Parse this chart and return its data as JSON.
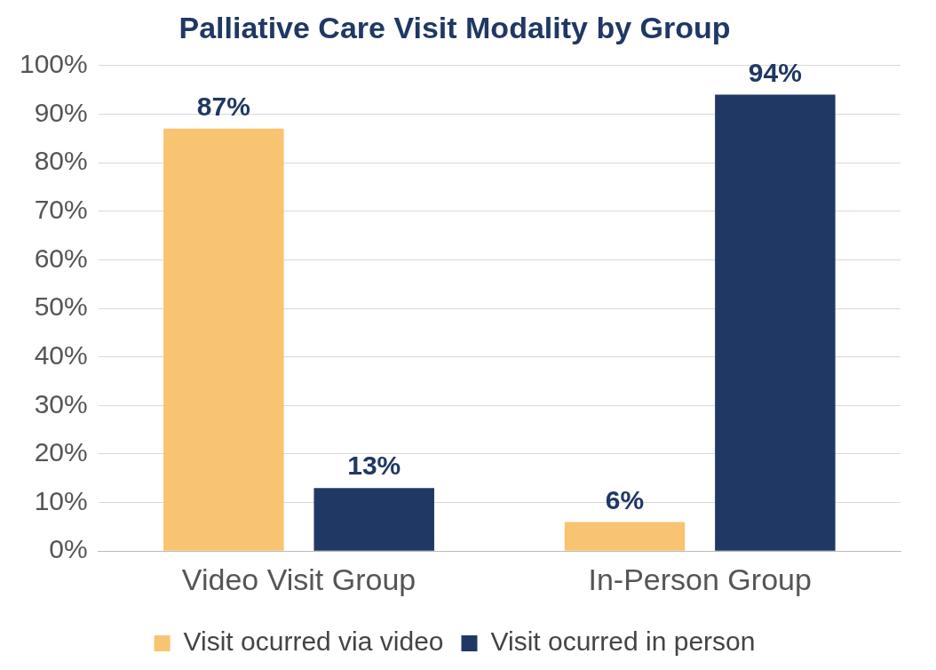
{
  "chart_data": {
    "type": "bar",
    "title": "Palliative Care Visit Modality by Group",
    "categories": [
      "Video Visit Group",
      "In-Person Group"
    ],
    "series": [
      {
        "name": "Visit ocurred via video",
        "color": "#f8c471",
        "values": [
          87,
          6
        ],
        "value_labels": [
          "87%",
          "6%"
        ]
      },
      {
        "name": "Visit ocurred in person",
        "color": "#203864",
        "values": [
          13,
          94
        ],
        "value_labels": [
          "13%",
          "94%"
        ]
      }
    ],
    "ylim": [
      0,
      100
    ],
    "yticks": [
      {
        "value": 0,
        "label": "0%"
      },
      {
        "value": 10,
        "label": "10%"
      },
      {
        "value": 20,
        "label": "20%"
      },
      {
        "value": 30,
        "label": "30%"
      },
      {
        "value": 40,
        "label": "40%"
      },
      {
        "value": 50,
        "label": "50%"
      },
      {
        "value": 60,
        "label": "60%"
      },
      {
        "value": 70,
        "label": "70%"
      },
      {
        "value": 80,
        "label": "80%"
      },
      {
        "value": 90,
        "label": "90%"
      },
      {
        "value": 100,
        "label": "100%"
      }
    ],
    "grid": "y",
    "legend": "bottom"
  }
}
